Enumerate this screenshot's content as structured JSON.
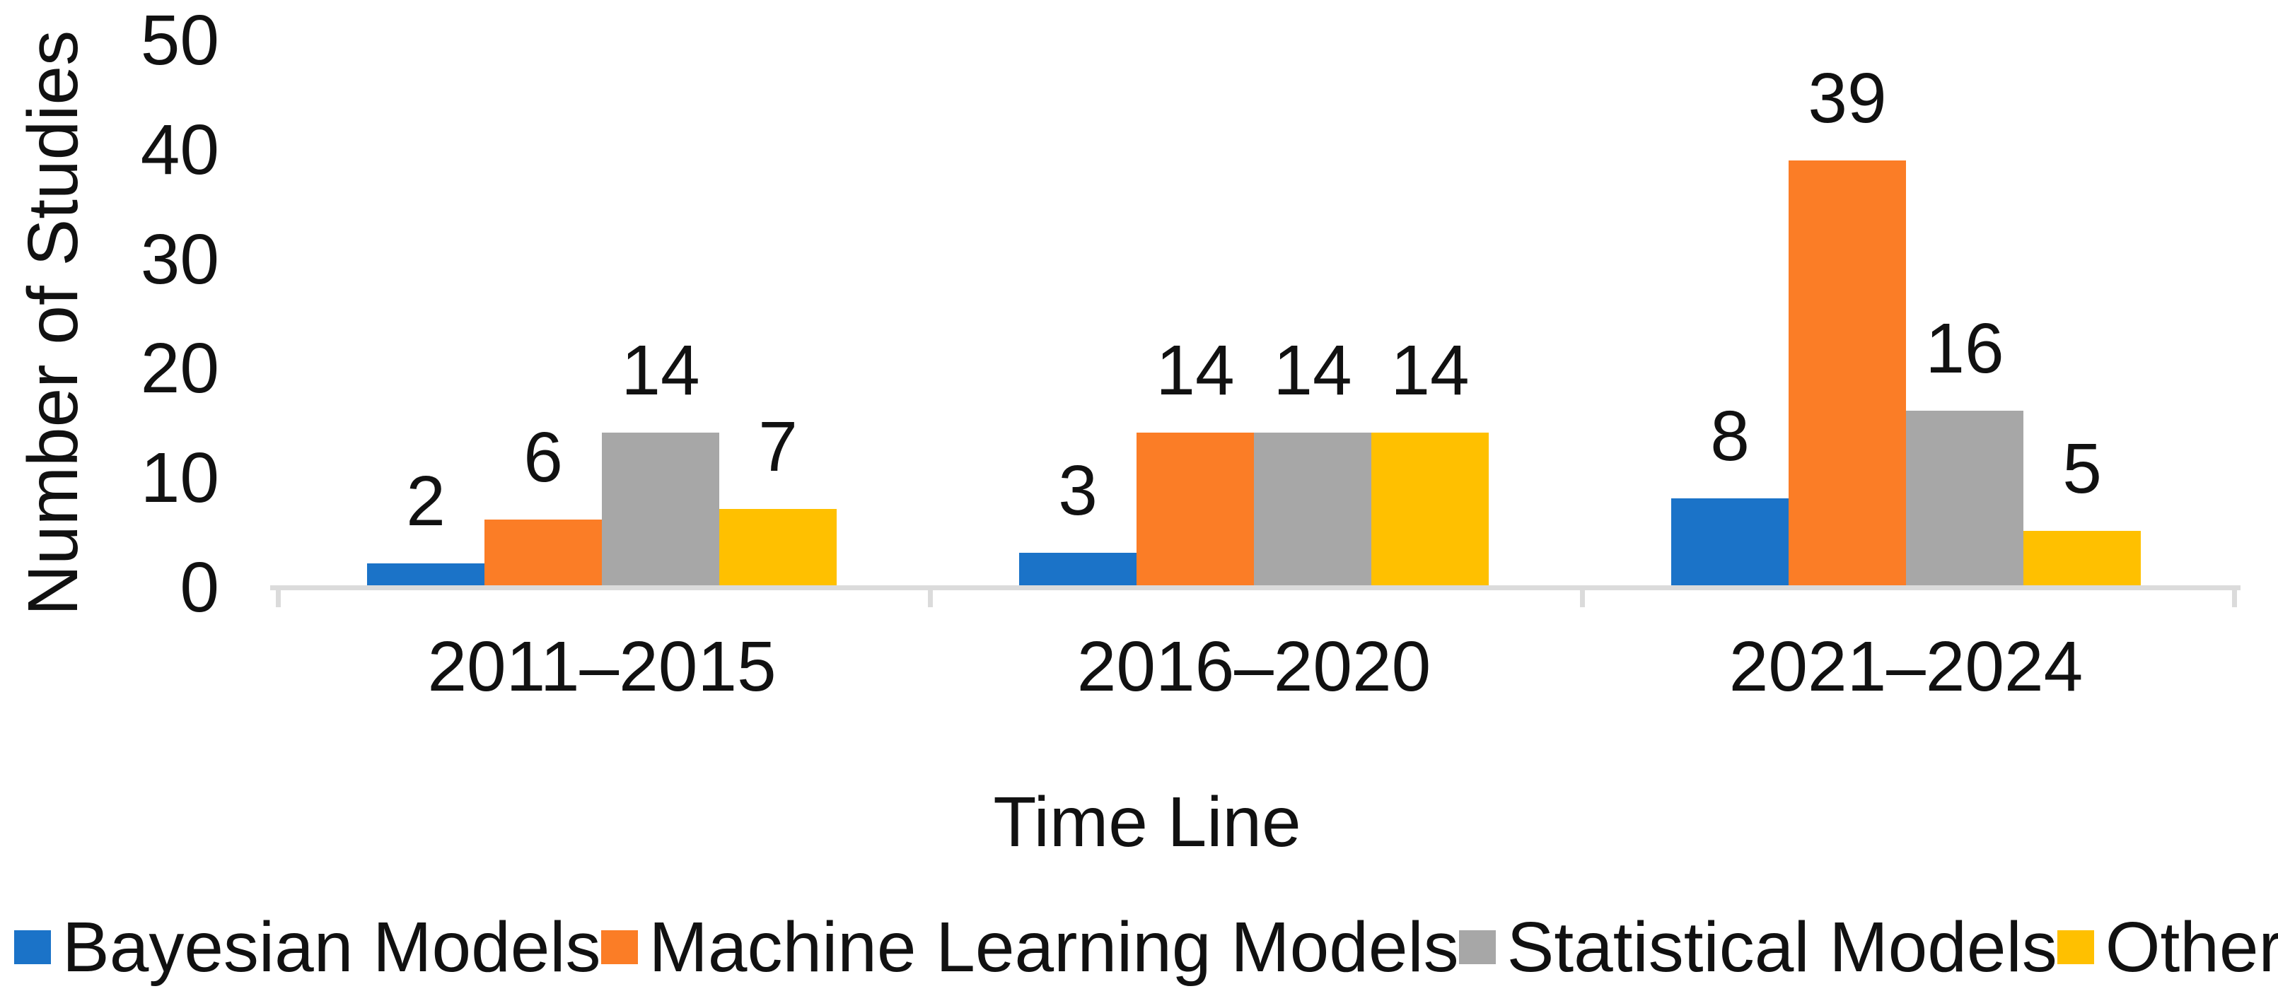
{
  "chart_data": {
    "type": "bar",
    "title": "",
    "xlabel": "Time Line",
    "ylabel": "Number of Studies",
    "categories": [
      "2011–2015",
      "2016–2020",
      "2021–2024"
    ],
    "series": [
      {
        "name": "Bayesian Models",
        "color": "#1B73C8",
        "values": [
          2,
          3,
          8
        ]
      },
      {
        "name": "Machine Learning Models",
        "color": "#FB7D26",
        "values": [
          6,
          14,
          39
        ]
      },
      {
        "name": "Statistical Models",
        "color": "#A7A7A7",
        "values": [
          14,
          14,
          16
        ]
      },
      {
        "name": "Others",
        "color": "#FFC000",
        "values": [
          7,
          14,
          5
        ]
      }
    ],
    "ylim": [
      0,
      50
    ],
    "yticks": [
      0,
      10,
      20,
      30,
      40,
      50
    ],
    "grid": false,
    "legend_position": "bottom",
    "axis_line_color": "#DBDBDB",
    "text_color": "#111111"
  }
}
